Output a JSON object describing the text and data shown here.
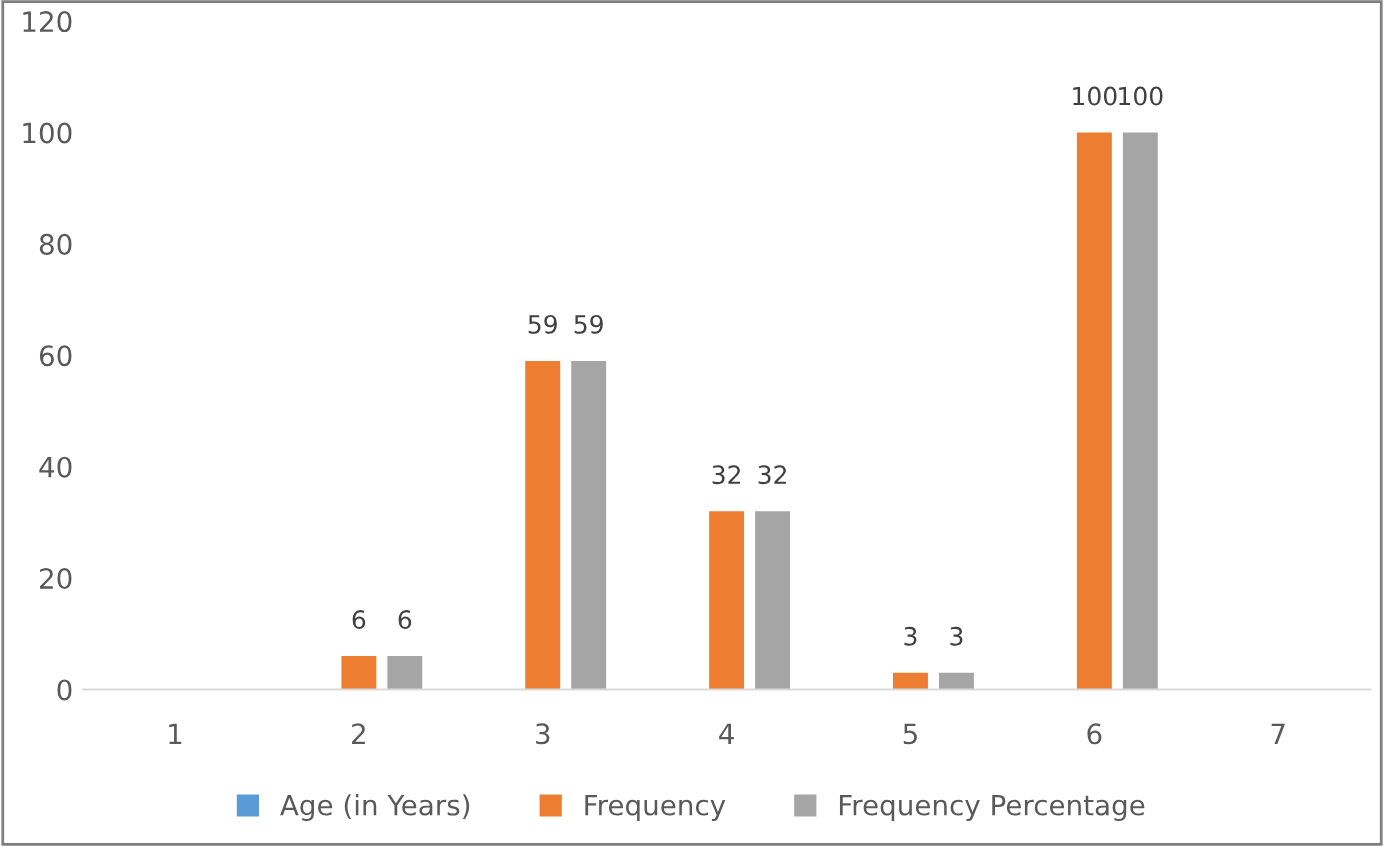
{
  "chart_data": {
    "type": "bar",
    "categories": [
      "1",
      "2",
      "3",
      "4",
      "5",
      "6",
      "7"
    ],
    "series": [
      {
        "name": "Age (in Years)",
        "color": "#5b9bd5",
        "values": [
          null,
          null,
          null,
          null,
          null,
          null,
          null
        ]
      },
      {
        "name": "Frequency",
        "color": "#ed7d31",
        "values": [
          null,
          6,
          59,
          32,
          3,
          100,
          null
        ]
      },
      {
        "name": "Frequency Percentage",
        "color": "#a5a5a5",
        "values": [
          null,
          6,
          59,
          32,
          3,
          100,
          null
        ]
      }
    ],
    "ylim": [
      0,
      120
    ],
    "yticks": [
      0,
      20,
      40,
      60,
      80,
      100,
      120
    ],
    "data_labels": true,
    "grid": false,
    "legend": "bottom"
  }
}
